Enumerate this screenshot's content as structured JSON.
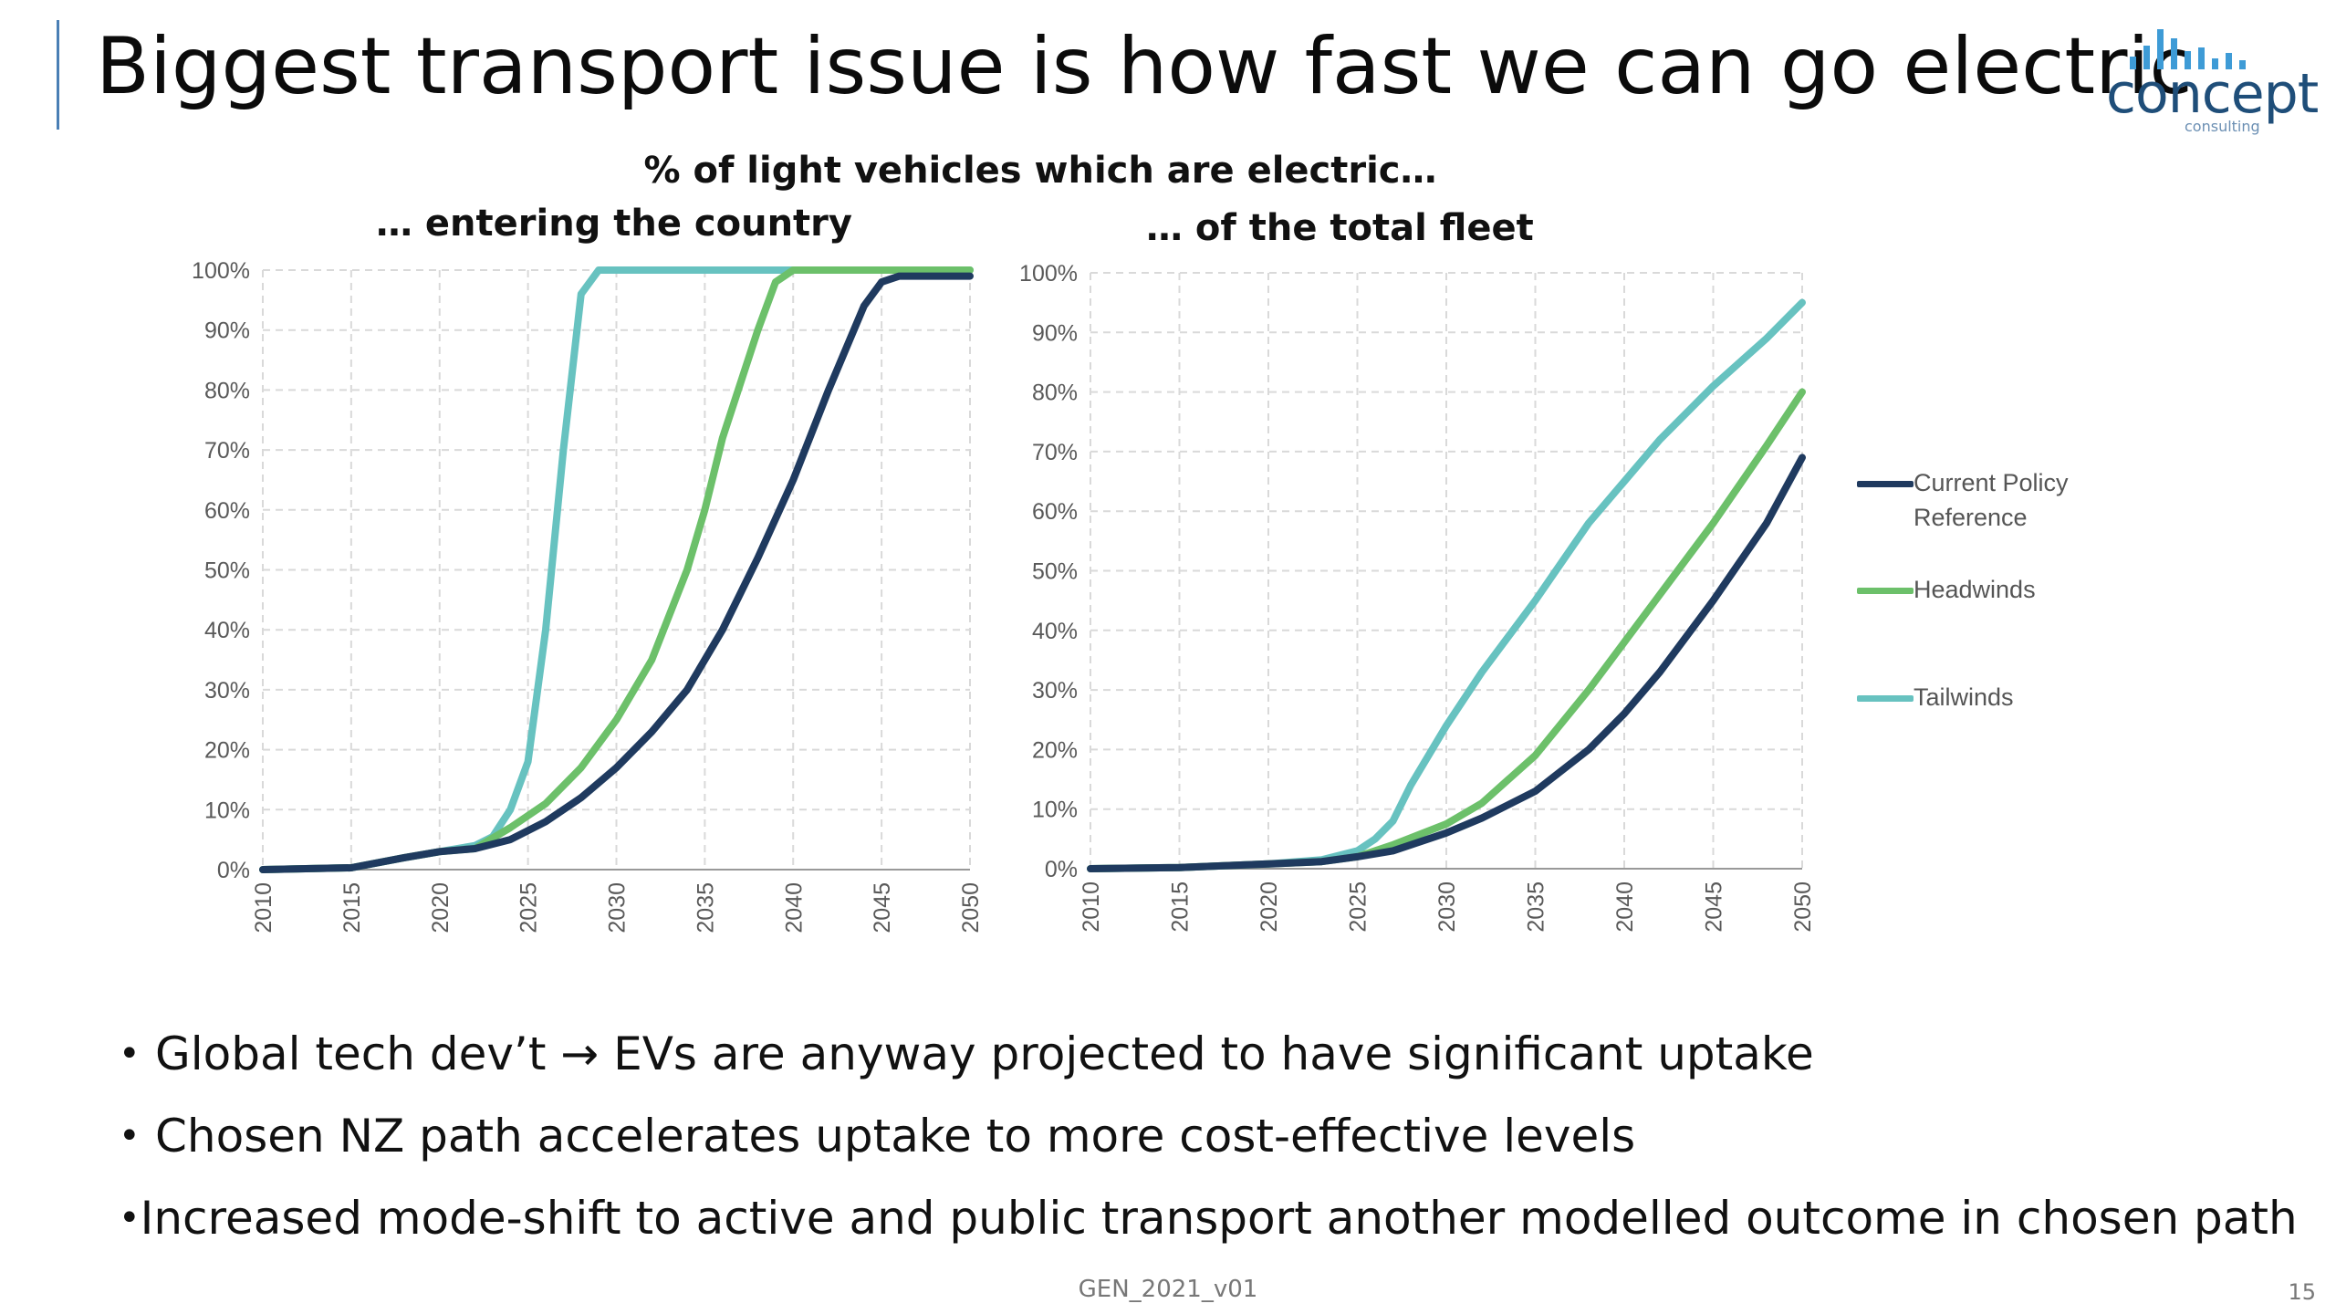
{
  "slide": {
    "title": "Biggest transport issue is how fast we can go electric",
    "chart_heading": "% of light vehicles which are electric…",
    "logo": {
      "word": "concept",
      "sub": "consulting"
    },
    "bullets": [
      "Global tech dev’t → EVs are anyway projected to have significant uptake",
      "Chosen NZ path accelerates uptake to more cost-effective levels",
      "Increased mode-shift to active and public transport another modelled outcome in chosen path"
    ],
    "footer": "GEN_2021_v01",
    "page_number": "15"
  },
  "legend": [
    {
      "label": "Current Policy Reference",
      "color": "#1f3a5f"
    },
    {
      "label": "Headwinds",
      "color": "#6cc06a"
    },
    {
      "label": "Tailwinds",
      "color": "#67c2c0"
    }
  ],
  "colors": {
    "accent": "#4a7fb5",
    "logo": "#1f4e79",
    "logo_bars": "#3e9bd6",
    "grid": "#d9d9d9",
    "axis": "#999999"
  },
  "chart_data": [
    {
      "type": "line",
      "title": "… entering the country",
      "x_ticks": [
        "2010",
        "2015",
        "2020",
        "2025",
        "2030",
        "2035",
        "2040",
        "2045",
        "2050"
      ],
      "y_ticks": [
        "0%",
        "10%",
        "20%",
        "30%",
        "40%",
        "50%",
        "60%",
        "70%",
        "80%",
        "90%",
        "100%"
      ],
      "xlim": [
        2010,
        2050
      ],
      "ylim": [
        0,
        100
      ],
      "grid": true,
      "legend_position": "right",
      "series": [
        {
          "name": "Current Policy Reference",
          "color": "#1f3a5f",
          "x": [
            2010,
            2015,
            2018,
            2020,
            2022,
            2024,
            2026,
            2028,
            2030,
            2032,
            2034,
            2036,
            2038,
            2040,
            2042,
            2044,
            2045,
            2046,
            2048,
            2050
          ],
          "y": [
            0,
            0.3,
            2,
            3,
            3.5,
            5,
            8,
            12,
            17,
            23,
            30,
            40,
            52,
            65,
            80,
            94,
            98,
            99,
            99,
            99
          ]
        },
        {
          "name": "Headwinds",
          "color": "#6cc06a",
          "x": [
            2010,
            2015,
            2018,
            2020,
            2022,
            2024,
            2026,
            2028,
            2030,
            2032,
            2034,
            2035,
            2036,
            2038,
            2039,
            2040,
            2045,
            2050
          ],
          "y": [
            0,
            0.3,
            2,
            3,
            3.5,
            7,
            11,
            17,
            25,
            35,
            50,
            60,
            72,
            90,
            98,
            100,
            100,
            100
          ]
        },
        {
          "name": "Tailwinds",
          "color": "#67c2c0",
          "x": [
            2010,
            2015,
            2018,
            2020,
            2022,
            2023,
            2024,
            2025,
            2026,
            2027,
            2028,
            2029,
            2030,
            2035,
            2040,
            2045,
            2050
          ],
          "y": [
            0,
            0.3,
            2,
            3,
            4,
            5.5,
            10,
            18,
            40,
            70,
            96,
            100,
            100,
            100,
            100,
            100,
            100
          ]
        }
      ]
    },
    {
      "type": "line",
      "title": "… of the total fleet",
      "x_ticks": [
        "2010",
        "2015",
        "2020",
        "2025",
        "2030",
        "2035",
        "2040",
        "2045",
        "2050"
      ],
      "y_ticks": [
        "0%",
        "10%",
        "20%",
        "30%",
        "40%",
        "50%",
        "60%",
        "70%",
        "80%",
        "90%",
        "100%"
      ],
      "xlim": [
        2010,
        2050
      ],
      "ylim": [
        0,
        100
      ],
      "grid": true,
      "legend_position": "right",
      "series": [
        {
          "name": "Current Policy Reference",
          "color": "#1f3a5f",
          "x": [
            2010,
            2015,
            2020,
            2023,
            2025,
            2027,
            2030,
            2032,
            2035,
            2038,
            2040,
            2042,
            2045,
            2048,
            2050
          ],
          "y": [
            0,
            0.2,
            0.8,
            1.2,
            2,
            3,
            6,
            8.5,
            13,
            20,
            26,
            33,
            45,
            58,
            69
          ]
        },
        {
          "name": "Headwinds",
          "color": "#6cc06a",
          "x": [
            2010,
            2015,
            2020,
            2023,
            2025,
            2027,
            2030,
            2032,
            2035,
            2038,
            2040,
            2042,
            2045,
            2048,
            2050
          ],
          "y": [
            0,
            0.2,
            0.8,
            1.2,
            2,
            4,
            7.5,
            11,
            19,
            30,
            38,
            46,
            58,
            71,
            80
          ]
        },
        {
          "name": "Tailwinds",
          "color": "#67c2c0",
          "x": [
            2010,
            2015,
            2020,
            2023,
            2025,
            2026,
            2027,
            2028,
            2030,
            2032,
            2035,
            2038,
            2040,
            2042,
            2045,
            2048,
            2050
          ],
          "y": [
            0,
            0.2,
            0.8,
            1.5,
            3,
            5,
            8,
            14,
            24,
            33,
            45,
            58,
            65,
            72,
            81,
            89,
            95
          ]
        }
      ]
    }
  ]
}
